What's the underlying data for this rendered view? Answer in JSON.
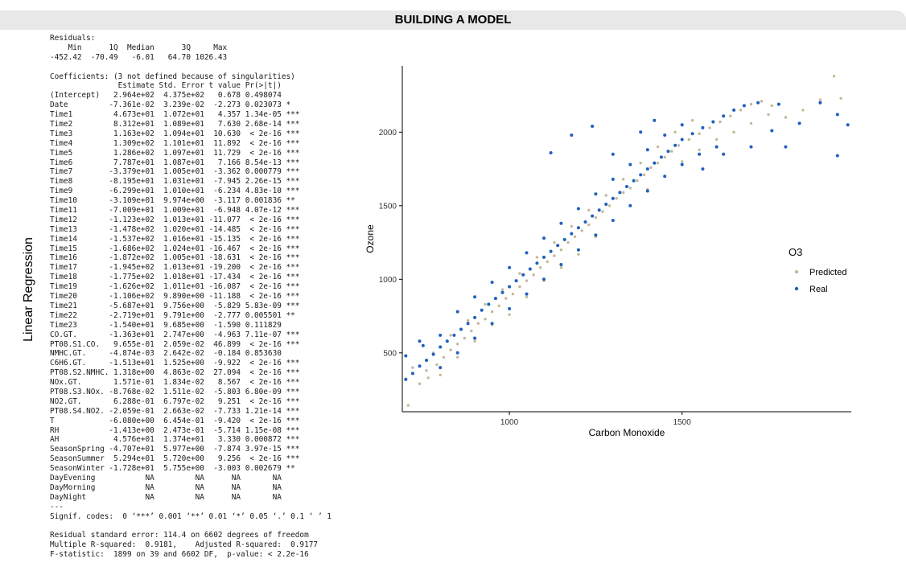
{
  "header": {
    "title": "BUILDING A MODEL"
  },
  "side_label": "Linear Regression",
  "r_output": [
    "Residuals:",
    "    Min      1Q  Median      3Q     Max",
    "-452.42  -70.49   -6.01   64.70 1026.43",
    "",
    "Coefficients: (3 not defined because of singularities)",
    "               Estimate Std. Error t value Pr(>|t|)",
    "(Intercept)   2.964e+02  4.375e+02   0.678 0.498074",
    "Date         -7.361e-02  3.239e-02  -2.273 0.023073 *",
    "Time1         4.673e+01  1.072e+01   4.357 1.34e-05 ***",
    "Time2         8.312e+01  1.089e+01   7.630 2.68e-14 ***",
    "Time3         1.163e+02  1.094e+01  10.630  < 2e-16 ***",
    "Time4         1.309e+02  1.101e+01  11.892  < 2e-16 ***",
    "Time5         1.286e+02  1.097e+01  11.729  < 2e-16 ***",
    "Time6         7.787e+01  1.087e+01   7.166 8.54e-13 ***",
    "Time7        -3.379e+01  1.005e+01  -3.362 0.000779 ***",
    "Time8        -8.195e+01  1.031e+01  -7.945 2.26e-15 ***",
    "Time9        -6.299e+01  1.010e+01  -6.234 4.83e-10 ***",
    "Time10       -3.109e+01  9.974e+00  -3.117 0.001836 **",
    "Time11       -7.009e+01  1.009e+01  -6.948 4.07e-12 ***",
    "Time12       -1.123e+02  1.013e+01 -11.077  < 2e-16 ***",
    "Time13       -1.478e+02  1.020e+01 -14.485  < 2e-16 ***",
    "Time14       -1.537e+02  1.016e+01 -15.135  < 2e-16 ***",
    "Time15       -1.686e+02  1.024e+01 -16.467  < 2e-16 ***",
    "Time16       -1.872e+02  1.005e+01 -18.631  < 2e-16 ***",
    "Time17       -1.945e+02  1.013e+01 -19.200  < 2e-16 ***",
    "Time18       -1.775e+02  1.018e+01 -17.434  < 2e-16 ***",
    "Time19       -1.626e+02  1.011e+01 -16.087  < 2e-16 ***",
    "Time20       -1.106e+02  9.890e+00 -11.188  < 2e-16 ***",
    "Time21       -5.687e+01  9.756e+00  -5.829 5.83e-09 ***",
    "Time22       -2.719e+01  9.791e+00  -2.777 0.005501 **",
    "Time23       -1.540e+01  9.685e+00  -1.590 0.111829",
    "CO.GT.       -1.363e+01  2.747e+00  -4.963 7.11e-07 ***",
    "PT08.S1.CO.   9.655e-01  2.059e-02  46.899  < 2e-16 ***",
    "NMHC.GT.     -4.874e-03  2.642e-02  -0.184 0.853630",
    "C6H6.GT.     -1.513e+01  1.525e+00  -9.922  < 2e-16 ***",
    "PT08.S2.NMHC. 1.318e+00  4.863e-02  27.094  < 2e-16 ***",
    "NOx.GT.       1.571e-01  1.834e-02   8.567  < 2e-16 ***",
    "PT08.S3.NOx. -8.768e-02  1.511e-02  -5.803 6.80e-09 ***",
    "NO2.GT.       6.288e-01  6.797e-02   9.251  < 2e-16 ***",
    "PT08.S4.NO2. -2.059e-01  2.663e-02  -7.733 1.21e-14 ***",
    "T            -6.080e+00  6.454e-01  -9.420  < 2e-16 ***",
    "RH           -1.413e+00  2.473e-01  -5.714 1.15e-08 ***",
    "AH            4.576e+01  1.374e+01   3.330 0.000872 ***",
    "SeasonSpring -4.707e+01  5.977e+00  -7.874 3.97e-15 ***",
    "SeasonSummer  5.294e+01  5.720e+00   9.256  < 2e-16 ***",
    "SeasonWinter -1.728e+01  5.755e+00  -3.003 0.002679 **",
    "DayEvening           NA         NA      NA       NA",
    "DayMorning           NA         NA      NA       NA",
    "DayNight             NA         NA      NA       NA",
    "---",
    "Signif. codes:  0 ‘***’ 0.001 ‘**’ 0.01 ‘*’ 0.05 ‘.’ 0.1 ‘ ’ 1",
    "",
    "Residual standard error: 114.4 on 6602 degrees of freedom",
    "Multiple R-squared:  0.9181,    Adjusted R-squared:  0.9177",
    "F-statistic:  1899 on 39 and 6602 DF,  p-value: < 2.2e-16"
  ],
  "chart_data": {
    "type": "scatter",
    "xlabel": "Carbon Monoxide",
    "ylabel": "Ozone",
    "xlim": [
      690,
      1990
    ],
    "ylim": [
      100,
      2450
    ],
    "x_ticks": [
      1000,
      1500
    ],
    "y_ticks": [
      500,
      1000,
      1500,
      2000
    ],
    "grid": false,
    "legend": {
      "title": "O3",
      "placement": "right"
    },
    "series": [
      {
        "name": "Predicted",
        "color": "#c4b89a",
        "points": [
          [
            707,
            143
          ],
          [
            740,
            290
          ],
          [
            765,
            330
          ],
          [
            790,
            420
          ],
          [
            810,
            470
          ],
          [
            830,
            520
          ],
          [
            850,
            560
          ],
          [
            870,
            600
          ],
          [
            890,
            650
          ],
          [
            910,
            700
          ],
          [
            930,
            730
          ],
          [
            950,
            780
          ],
          [
            970,
            820
          ],
          [
            990,
            870
          ],
          [
            1010,
            900
          ],
          [
            1030,
            950
          ],
          [
            1050,
            990
          ],
          [
            1070,
            1030
          ],
          [
            1090,
            1080
          ],
          [
            1110,
            1120
          ],
          [
            1130,
            1160
          ],
          [
            1150,
            1200
          ],
          [
            1170,
            1250
          ],
          [
            1190,
            1290
          ],
          [
            1210,
            1330
          ],
          [
            1230,
            1370
          ],
          [
            1250,
            1420
          ],
          [
            1270,
            1460
          ],
          [
            1290,
            1500
          ],
          [
            1310,
            1550
          ],
          [
            1330,
            1590
          ],
          [
            1350,
            1620
          ],
          [
            1370,
            1670
          ],
          [
            1390,
            1710
          ],
          [
            1410,
            1760
          ],
          [
            1430,
            1790
          ],
          [
            1450,
            1830
          ],
          [
            1470,
            1870
          ],
          [
            1490,
            1910
          ],
          [
            1520,
            1950
          ],
          [
            1550,
            1990
          ],
          [
            1580,
            2030
          ],
          [
            1610,
            2070
          ],
          [
            1640,
            2110
          ],
          [
            1670,
            2150
          ],
          [
            1700,
            2190
          ],
          [
            1730,
            2210
          ],
          [
            1760,
            2180
          ],
          [
            1800,
            2100
          ],
          [
            1850,
            2150
          ],
          [
            1900,
            2220
          ],
          [
            1940,
            2380
          ],
          [
            1960,
            2230
          ],
          [
            760,
            380
          ],
          [
            800,
            350
          ],
          [
            850,
            470
          ],
          [
            900,
            580
          ],
          [
            950,
            690
          ],
          [
            1000,
            760
          ],
          [
            1050,
            880
          ],
          [
            1100,
            990
          ],
          [
            1150,
            1080
          ],
          [
            1200,
            1170
          ],
          [
            1250,
            1290
          ],
          [
            1300,
            1400
          ],
          [
            1350,
            1500
          ],
          [
            1400,
            1610
          ],
          [
            1450,
            1700
          ],
          [
            1500,
            1800
          ],
          [
            1550,
            1880
          ],
          [
            1600,
            1950
          ],
          [
            780,
            500
          ],
          [
            830,
            620
          ],
          [
            880,
            720
          ],
          [
            930,
            830
          ],
          [
            980,
            930
          ],
          [
            1030,
            1040
          ],
          [
            1080,
            1150
          ],
          [
            1130,
            1250
          ],
          [
            1180,
            1360
          ],
          [
            1230,
            1470
          ],
          [
            1280,
            1570
          ],
          [
            1330,
            1680
          ],
          [
            1380,
            1790
          ],
          [
            1430,
            1900
          ],
          [
            1480,
            2000
          ],
          [
            1530,
            2080
          ],
          [
            720,
            400
          ],
          [
            1650,
            2000
          ],
          [
            1700,
            2060
          ],
          [
            1750,
            2120
          ]
        ]
      },
      {
        "name": "Real",
        "color": "#1f5fbf",
        "points": [
          [
            700,
            320
          ],
          [
            720,
            360
          ],
          [
            740,
            410
          ],
          [
            760,
            450
          ],
          [
            780,
            490
          ],
          [
            800,
            540
          ],
          [
            820,
            580
          ],
          [
            840,
            620
          ],
          [
            860,
            660
          ],
          [
            880,
            700
          ],
          [
            900,
            740
          ],
          [
            920,
            790
          ],
          [
            940,
            830
          ],
          [
            960,
            870
          ],
          [
            980,
            910
          ],
          [
            1000,
            950
          ],
          [
            1020,
            990
          ],
          [
            1040,
            1030
          ],
          [
            1060,
            1070
          ],
          [
            1080,
            1110
          ],
          [
            1100,
            1150
          ],
          [
            1120,
            1190
          ],
          [
            1140,
            1230
          ],
          [
            1160,
            1270
          ],
          [
            1180,
            1310
          ],
          [
            1200,
            1350
          ],
          [
            1220,
            1390
          ],
          [
            1240,
            1430
          ],
          [
            1260,
            1470
          ],
          [
            1280,
            1510
          ],
          [
            1300,
            1550
          ],
          [
            1320,
            1590
          ],
          [
            1340,
            1630
          ],
          [
            1360,
            1670
          ],
          [
            1380,
            1710
          ],
          [
            1400,
            1750
          ],
          [
            1420,
            1790
          ],
          [
            1440,
            1830
          ],
          [
            1460,
            1870
          ],
          [
            1480,
            1910
          ],
          [
            1500,
            1950
          ],
          [
            1530,
            1990
          ],
          [
            1560,
            2030
          ],
          [
            1590,
            2070
          ],
          [
            1620,
            2110
          ],
          [
            1650,
            2150
          ],
          [
            1680,
            2180
          ],
          [
            1720,
            2200
          ],
          [
            1780,
            2190
          ],
          [
            1840,
            2060
          ],
          [
            1900,
            2200
          ],
          [
            1950,
            2120
          ],
          [
            1980,
            2050
          ],
          [
            1950,
            1840
          ],
          [
            750,
            550
          ],
          [
            800,
            620
          ],
          [
            850,
            780
          ],
          [
            900,
            880
          ],
          [
            950,
            980
          ],
          [
            1000,
            1080
          ],
          [
            1050,
            1180
          ],
          [
            1100,
            1280
          ],
          [
            1150,
            1380
          ],
          [
            1200,
            1480
          ],
          [
            1250,
            1580
          ],
          [
            1300,
            1680
          ],
          [
            1350,
            1780
          ],
          [
            1400,
            1880
          ],
          [
            1450,
            1980
          ],
          [
            1500,
            2050
          ],
          [
            800,
            400
          ],
          [
            850,
            500
          ],
          [
            900,
            600
          ],
          [
            950,
            700
          ],
          [
            1000,
            800
          ],
          [
            1050,
            900
          ],
          [
            1100,
            1000
          ],
          [
            1150,
            1100
          ],
          [
            1200,
            1200
          ],
          [
            1250,
            1300
          ],
          [
            1300,
            1400
          ],
          [
            1350,
            1500
          ],
          [
            1400,
            1600
          ],
          [
            1450,
            1700
          ],
          [
            1500,
            1780
          ],
          [
            1550,
            1850
          ],
          [
            1600,
            1900
          ],
          [
            1120,
            1860
          ],
          [
            1180,
            1980
          ],
          [
            1240,
            2040
          ],
          [
            1300,
            1850
          ],
          [
            1380,
            2000
          ],
          [
            1420,
            2080
          ],
          [
            1560,
            1750
          ],
          [
            1620,
            1850
          ],
          [
            700,
            480
          ],
          [
            740,
            580
          ],
          [
            1700,
            1900
          ],
          [
            1800,
            1900
          ],
          [
            1760,
            2010
          ]
        ]
      }
    ]
  }
}
